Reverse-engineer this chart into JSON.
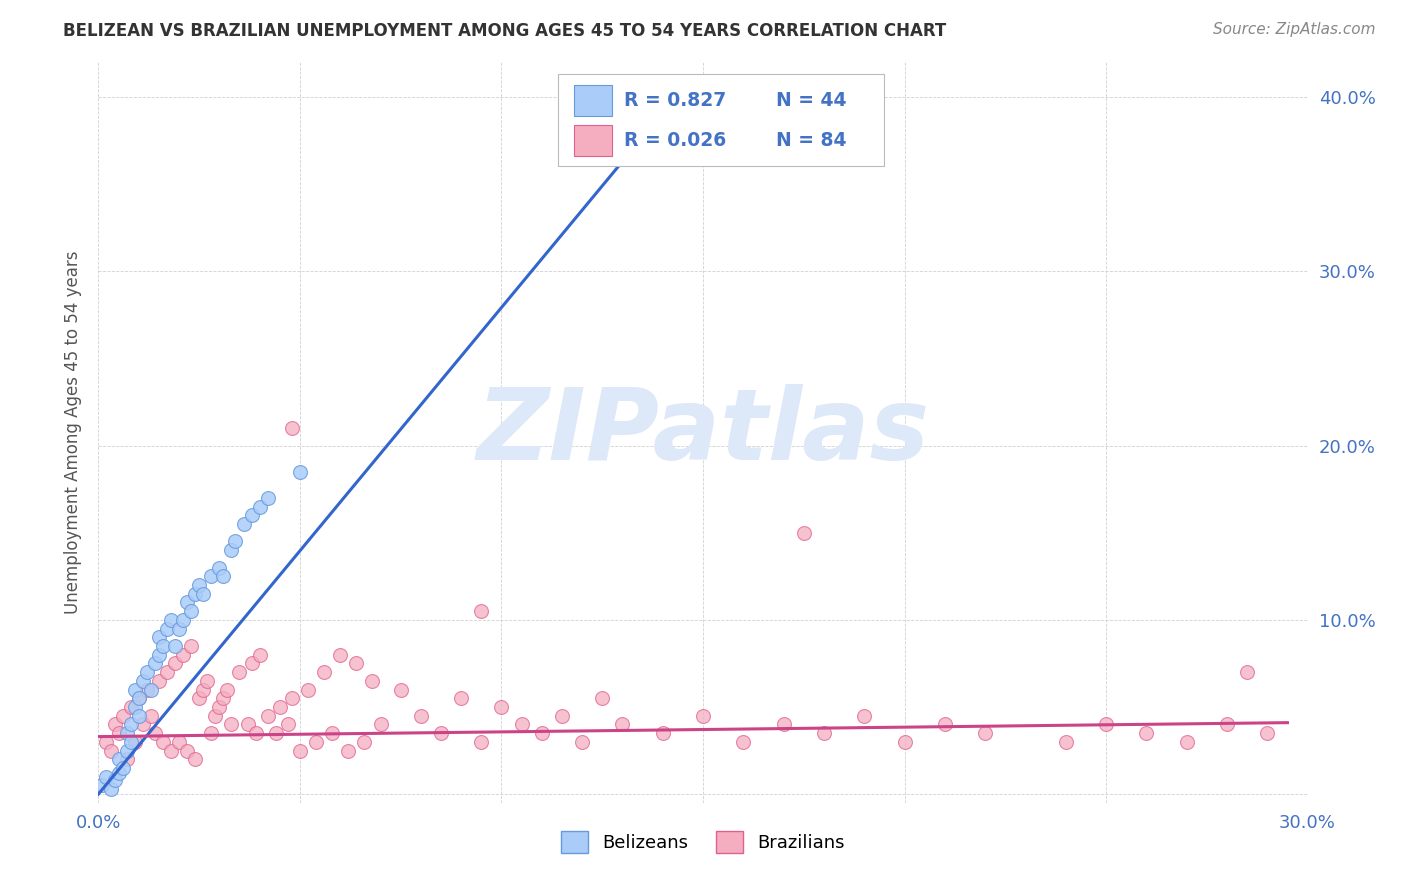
{
  "title": "BELIZEAN VS BRAZILIAN UNEMPLOYMENT AMONG AGES 45 TO 54 YEARS CORRELATION CHART",
  "source": "Source: ZipAtlas.com",
  "ylabel": "Unemployment Among Ages 45 to 54 years",
  "xlim": [
    0.0,
    0.3
  ],
  "ylim": [
    -0.005,
    0.42
  ],
  "xticks": [
    0.0,
    0.05,
    0.1,
    0.15,
    0.2,
    0.25,
    0.3
  ],
  "yticks": [
    0.0,
    0.1,
    0.2,
    0.3,
    0.4
  ],
  "xtick_labels": [
    "0.0%",
    "",
    "",
    "",
    "",
    "",
    "30.0%"
  ],
  "ytick_labels": [
    "",
    "10.0%",
    "20.0%",
    "30.0%",
    "40.0%"
  ],
  "belizean_color": "#aaccf8",
  "brazilian_color": "#f4aec0",
  "belizean_edge_color": "#6699dd",
  "brazilian_edge_color": "#e06090",
  "belizean_line_color": "#3366cc",
  "brazilian_line_color": "#cc4488",
  "belizean_R": 0.827,
  "belizean_N": 44,
  "brazilian_R": 0.026,
  "brazilian_N": 84,
  "background_color": "#ffffff",
  "grid_color": "#cccccc",
  "watermark_color": "#dde8f8",
  "tick_color": "#4472c4",
  "title_color": "#333333",
  "source_color": "#888888",
  "ylabel_color": "#555555",
  "belizean_x": [
    0.001,
    0.002,
    0.003,
    0.004,
    0.005,
    0.005,
    0.006,
    0.007,
    0.007,
    0.008,
    0.008,
    0.009,
    0.009,
    0.01,
    0.01,
    0.011,
    0.012,
    0.013,
    0.014,
    0.015,
    0.015,
    0.016,
    0.017,
    0.018,
    0.019,
    0.02,
    0.021,
    0.022,
    0.023,
    0.024,
    0.025,
    0.026,
    0.028,
    0.03,
    0.031,
    0.033,
    0.034,
    0.036,
    0.038,
    0.04,
    0.042,
    0.05,
    0.13,
    0.148
  ],
  "belizean_y": [
    0.005,
    0.01,
    0.003,
    0.008,
    0.012,
    0.02,
    0.015,
    0.025,
    0.035,
    0.03,
    0.04,
    0.05,
    0.06,
    0.045,
    0.055,
    0.065,
    0.07,
    0.06,
    0.075,
    0.08,
    0.09,
    0.085,
    0.095,
    0.1,
    0.085,
    0.095,
    0.1,
    0.11,
    0.105,
    0.115,
    0.12,
    0.115,
    0.125,
    0.13,
    0.125,
    0.14,
    0.145,
    0.155,
    0.16,
    0.165,
    0.17,
    0.185,
    0.375,
    0.405
  ],
  "brazilian_x": [
    0.002,
    0.003,
    0.004,
    0.005,
    0.006,
    0.007,
    0.008,
    0.009,
    0.01,
    0.011,
    0.012,
    0.013,
    0.014,
    0.015,
    0.016,
    0.017,
    0.018,
    0.019,
    0.02,
    0.021,
    0.022,
    0.023,
    0.024,
    0.025,
    0.026,
    0.027,
    0.028,
    0.029,
    0.03,
    0.031,
    0.032,
    0.033,
    0.035,
    0.037,
    0.038,
    0.039,
    0.04,
    0.042,
    0.044,
    0.045,
    0.047,
    0.048,
    0.05,
    0.052,
    0.054,
    0.056,
    0.058,
    0.06,
    0.062,
    0.064,
    0.066,
    0.068,
    0.07,
    0.075,
    0.08,
    0.085,
    0.09,
    0.095,
    0.1,
    0.105,
    0.11,
    0.115,
    0.12,
    0.125,
    0.13,
    0.14,
    0.15,
    0.16,
    0.17,
    0.18,
    0.19,
    0.2,
    0.21,
    0.22,
    0.24,
    0.25,
    0.26,
    0.27,
    0.28,
    0.29,
    0.048,
    0.095,
    0.175,
    0.285
  ],
  "brazilian_y": [
    0.03,
    0.025,
    0.04,
    0.035,
    0.045,
    0.02,
    0.05,
    0.03,
    0.055,
    0.04,
    0.06,
    0.045,
    0.035,
    0.065,
    0.03,
    0.07,
    0.025,
    0.075,
    0.03,
    0.08,
    0.025,
    0.085,
    0.02,
    0.055,
    0.06,
    0.065,
    0.035,
    0.045,
    0.05,
    0.055,
    0.06,
    0.04,
    0.07,
    0.04,
    0.075,
    0.035,
    0.08,
    0.045,
    0.035,
    0.05,
    0.04,
    0.055,
    0.025,
    0.06,
    0.03,
    0.07,
    0.035,
    0.08,
    0.025,
    0.075,
    0.03,
    0.065,
    0.04,
    0.06,
    0.045,
    0.035,
    0.055,
    0.03,
    0.05,
    0.04,
    0.035,
    0.045,
    0.03,
    0.055,
    0.04,
    0.035,
    0.045,
    0.03,
    0.04,
    0.035,
    0.045,
    0.03,
    0.04,
    0.035,
    0.03,
    0.04,
    0.035,
    0.03,
    0.04,
    0.035,
    0.21,
    0.105,
    0.15,
    0.07
  ],
  "bel_line_x": [
    0.0,
    0.145
  ],
  "bel_line_y": [
    0.0,
    0.405
  ],
  "bra_line_x": [
    0.0,
    0.295
  ],
  "bra_line_y": [
    0.033,
    0.041
  ]
}
